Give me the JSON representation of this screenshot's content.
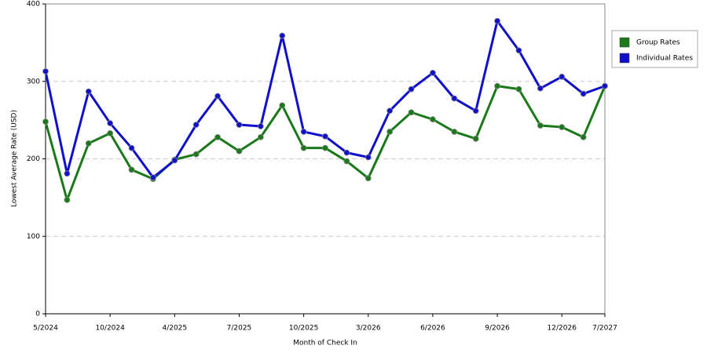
{
  "chart_data": {
    "type": "line",
    "x_label": "Month of Check In",
    "y_label": "Lowest Average Rate (USD)",
    "categories": [
      "5/2024",
      null,
      null,
      "10/2024",
      null,
      null,
      "4/2025",
      null,
      null,
      "7/2025",
      null,
      null,
      "10/2025",
      null,
      null,
      "3/2026",
      null,
      null,
      "6/2026",
      null,
      null,
      "9/2026",
      null,
      null,
      "12/2026",
      null,
      "7/2027"
    ],
    "series": [
      {
        "name": "Group Rates",
        "color": "#1a7a1a",
        "values": [
          248,
          147,
          220,
          233,
          186,
          174,
          199,
          206,
          228,
          210,
          228,
          269,
          214,
          214,
          197,
          175,
          235,
          260,
          251,
          235,
          226,
          294,
          290,
          243,
          241,
          228,
          294
        ]
      },
      {
        "name": "Individual Rates",
        "color": "#1010cc",
        "values": [
          313,
          181,
          287,
          246,
          214,
          176,
          198,
          244,
          281,
          244,
          242,
          359,
          235,
          229,
          208,
          202,
          262,
          290,
          311,
          278,
          262,
          378,
          340,
          291,
          306,
          284,
          294
        ]
      }
    ],
    "ylim": [
      0,
      400
    ],
    "yticks": [
      0,
      100,
      200,
      300,
      400
    ],
    "grid": true,
    "legend": "right"
  }
}
